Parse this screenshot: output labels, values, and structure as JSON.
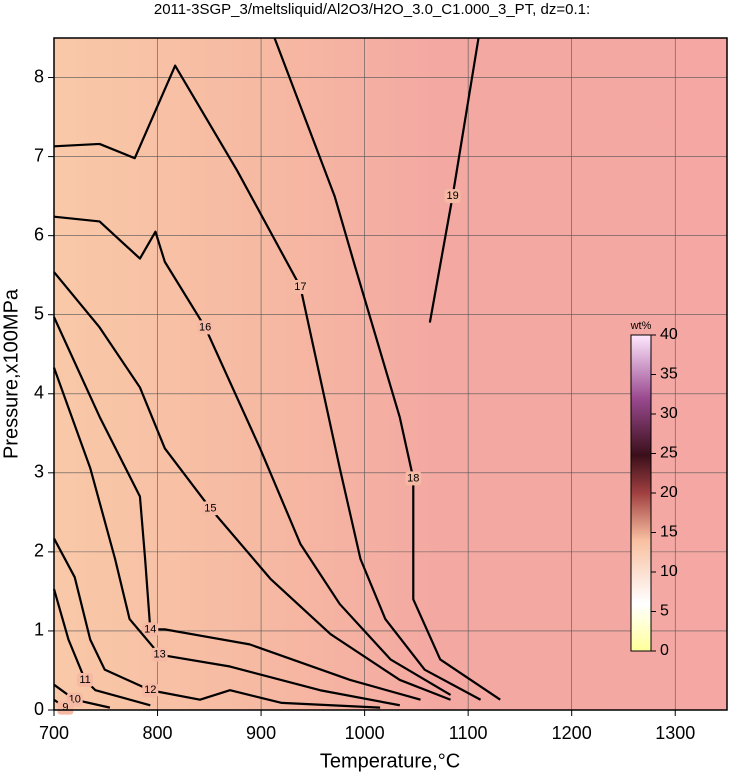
{
  "chart_data": {
    "type": "contour",
    "title": "2011-3SGP_3/meltsliquid/Al2O3/H2O_3.0_C1.000_3_PT, dz=0.1:",
    "xlabel": "Temperature,°C",
    "ylabel": "Pressure,x100MPa",
    "xlim": [
      700,
      1350
    ],
    "ylim": [
      0,
      8.5
    ],
    "xticks": [
      700,
      800,
      900,
      1000,
      1100,
      1200,
      1300
    ],
    "yticks": [
      0,
      1,
      2,
      3,
      4,
      5,
      6,
      7,
      8
    ],
    "grid": true,
    "colorbar": {
      "label": "wt%",
      "lim": [
        0,
        40
      ],
      "ticks": [
        0,
        5,
        10,
        15,
        20,
        25,
        30,
        35,
        40
      ]
    },
    "contours": [
      {
        "level": 19,
        "x": [
          1063,
          1085,
          1110
        ],
        "y": [
          4.9,
          6.5,
          8.5
        ]
      },
      {
        "level": 18,
        "x": [
          913,
          971,
          991,
          1034,
          1047,
          1047,
          1073,
          1131
        ],
        "y": [
          8.5,
          6.5,
          5.6,
          3.7,
          2.93,
          1.4,
          0.64,
          0.13
        ]
      },
      {
        "level": 17,
        "x": [
          700,
          744,
          778,
          817,
          877,
          938,
          976,
          996,
          1020,
          1058,
          1112
        ],
        "y": [
          7.13,
          7.16,
          6.98,
          8.15,
          6.82,
          5.35,
          3.06,
          1.91,
          1.15,
          0.51,
          0.13
        ]
      },
      {
        "level": 16,
        "x": [
          700,
          744,
          783,
          798,
          807,
          846,
          899,
          938,
          976,
          1025,
          1083
        ],
        "y": [
          6.24,
          6.18,
          5.71,
          6.05,
          5.67,
          4.84,
          3.31,
          2.1,
          1.34,
          0.64,
          0.19
        ]
      },
      {
        "level": 15,
        "x": [
          700,
          744,
          783,
          807,
          851,
          909,
          967,
          1034,
          1083
        ],
        "y": [
          5.54,
          4.84,
          4.08,
          3.31,
          2.55,
          1.66,
          0.96,
          0.38,
          0.13
        ]
      },
      {
        "level": 14,
        "x": [
          700,
          744,
          783,
          788,
          793,
          807,
          889,
          986,
          1054
        ],
        "y": [
          4.97,
          3.71,
          2.7,
          1.91,
          1.02,
          1.02,
          0.83,
          0.38,
          0.13
        ]
      },
      {
        "level": 13,
        "x": [
          700,
          735,
          759,
          773,
          802,
          870,
          957,
          1034
        ],
        "y": [
          4.33,
          3.06,
          1.91,
          1.15,
          0.7,
          0.55,
          0.25,
          0.06
        ]
      },
      {
        "level": 12,
        "x": [
          700,
          720,
          735,
          749,
          793,
          841,
          870,
          920,
          1015
        ],
        "y": [
          2.17,
          1.68,
          0.89,
          0.51,
          0.25,
          0.13,
          0.25,
          0.09,
          0.03
        ]
      },
      {
        "level": 11,
        "x": [
          700,
          714,
          730,
          740,
          793
        ],
        "y": [
          1.53,
          0.89,
          0.38,
          0.25,
          0.06
        ]
      },
      {
        "level": 10,
        "x": [
          700,
          720,
          754
        ],
        "y": [
          0.32,
          0.13,
          0.03
        ]
      },
      {
        "level": 9,
        "x": [
          700,
          711
        ],
        "y": [
          0.13,
          0.03
        ]
      }
    ]
  }
}
